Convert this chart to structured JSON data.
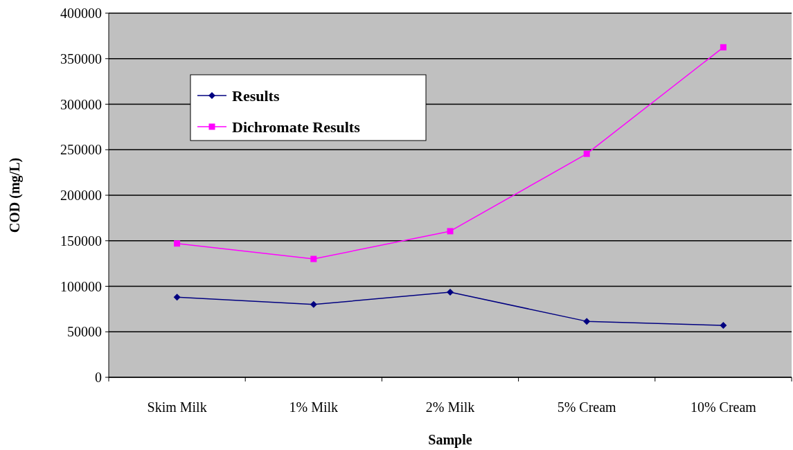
{
  "chart_data": {
    "type": "line",
    "xlabel": "Sample",
    "ylabel": "COD (mg/L)",
    "categories": [
      "Skim Milk",
      "1% Milk",
      "2% Milk",
      "5% Cream",
      "10% Cream"
    ],
    "series": [
      {
        "name": "Results",
        "color": "#000080",
        "marker": "diamond",
        "values": [
          88000,
          80000,
          93500,
          61500,
          57000
        ]
      },
      {
        "name": "Dichromate Results",
        "color": "#ff00ff",
        "marker": "square",
        "values": [
          147000,
          130000,
          160500,
          245500,
          362500
        ]
      }
    ],
    "ylim": [
      0,
      400000
    ],
    "yticks": [
      0,
      50000,
      100000,
      150000,
      200000,
      250000,
      300000,
      350000,
      400000
    ],
    "grid": "y",
    "legend": "top left"
  }
}
